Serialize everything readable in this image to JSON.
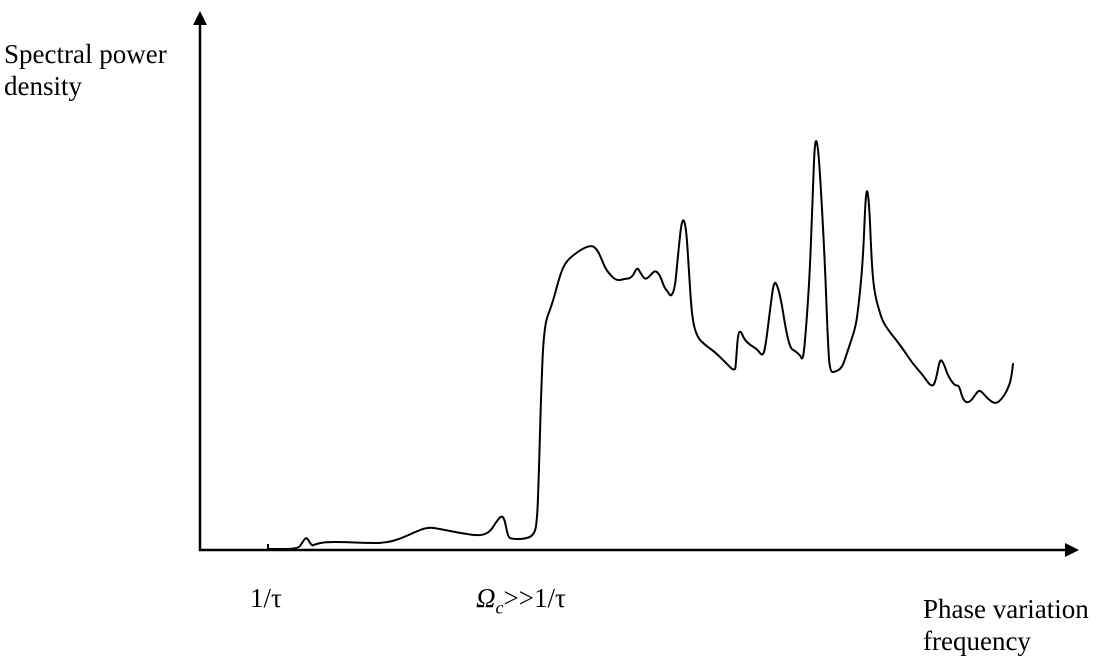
{
  "chart_data": {
    "type": "line",
    "ylabel_lines": [
      "Spectral power",
      "density"
    ],
    "xlabel_lines": [
      "Phase variation",
      "frequency"
    ],
    "x_ticks": [
      {
        "label": "1/τ",
        "italic": false
      },
      {
        "label": "Ωc>>1/τ",
        "italic_prefix": "Ω",
        "subscript": "c",
        "rest": ">>1/τ"
      }
    ],
    "grid": false,
    "legend": "none",
    "line_color": "#000000",
    "series": [
      {
        "values": "spectral power density curve (qualitative, unlabeled axes)"
      }
    ]
  }
}
